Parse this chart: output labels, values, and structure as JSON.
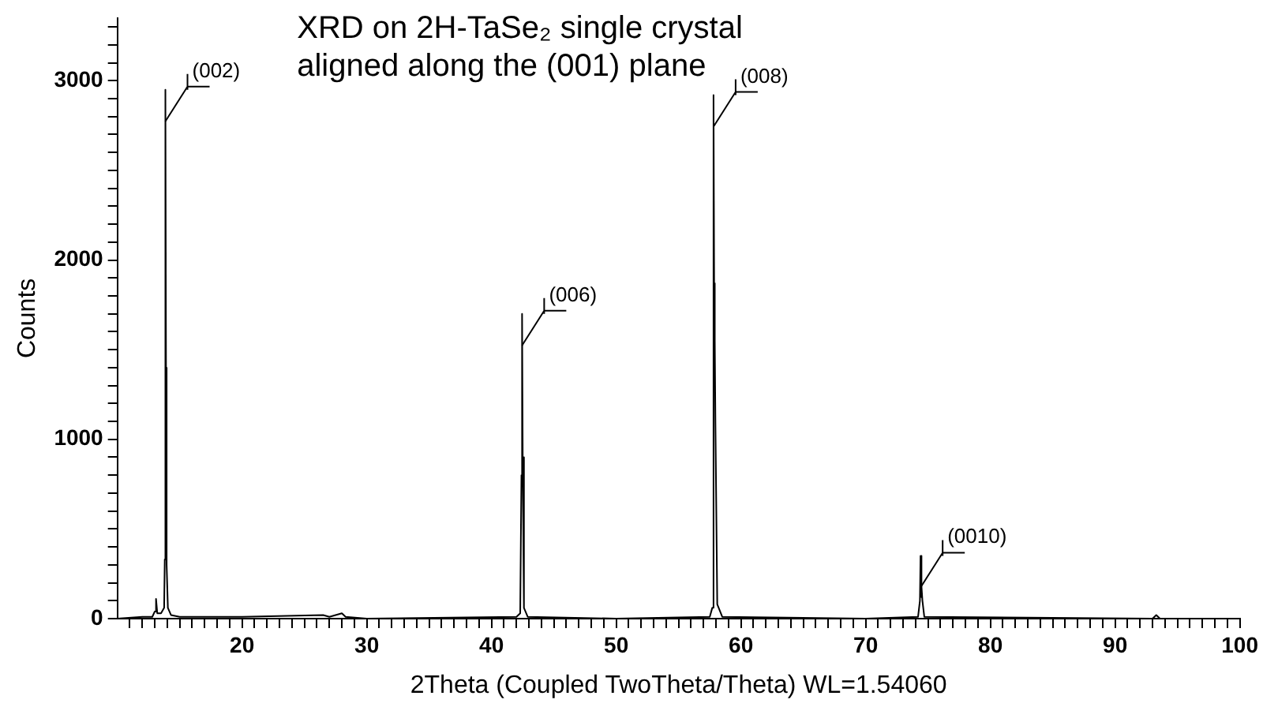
{
  "chart_data": {
    "type": "line",
    "title": "XRD on 2H-TaSe₂ single crystal",
    "subtitle": "aligned along the (001) plane",
    "xlabel": "2Theta (Coupled TwoTheta/Theta) WL=1.54060",
    "ylabel": "Counts",
    "series": [
      {
        "color": "#000000",
        "x": [
          10,
          12,
          12.8,
          13.0,
          13.1,
          13.2,
          13.5,
          13.75,
          13.8,
          13.85,
          13.9,
          13.95,
          14.05,
          14.3,
          15,
          20,
          26.5,
          27,
          28,
          28.3,
          30,
          42,
          42.3,
          42.4,
          42.45,
          42.5,
          42.6,
          42.9,
          50,
          57.5,
          57.7,
          57.8,
          57.85,
          57.9,
          57.95,
          58.1,
          58.5,
          70,
          74.2,
          74.35,
          74.4,
          74.45,
          74.5,
          74.55,
          74.7,
          93,
          93.3,
          93.6,
          100
        ],
        "values": [
          0,
          10,
          10,
          40,
          110,
          30,
          30,
          60,
          330,
          2950,
          1400,
          300,
          60,
          20,
          10,
          10,
          20,
          10,
          30,
          10,
          0,
          10,
          30,
          800,
          1700,
          900,
          60,
          10,
          0,
          10,
          60,
          2920,
          1870,
          1550,
          1100,
          80,
          10,
          0,
          10,
          100,
          350,
          120,
          180,
          100,
          10,
          0,
          20,
          0,
          0
        ]
      }
    ],
    "annotations": [
      {
        "text": "(002)",
        "x": 13.85,
        "y": 2950
      },
      {
        "text": "(006)",
        "x": 42.45,
        "y": 1700
      },
      {
        "text": "(008)",
        "x": 57.8,
        "y": 2920
      },
      {
        "text": "(0010)",
        "x": 74.4,
        "y": 350
      }
    ],
    "xlim": [
      10,
      100
    ],
    "xticks": [
      {
        "value": 11,
        "label": null
      },
      {
        "value": 12,
        "label": null
      },
      {
        "value": 13,
        "label": null
      },
      {
        "value": 14,
        "label": null
      },
      {
        "value": 15,
        "label": null
      },
      {
        "value": 16,
        "label": null
      },
      {
        "value": 17,
        "label": null
      },
      {
        "value": 18,
        "label": null
      },
      {
        "value": 19,
        "label": null
      },
      20,
      {
        "value": 21,
        "label": null
      },
      {
        "value": 22,
        "label": null
      },
      {
        "value": 23,
        "label": null
      },
      {
        "value": 24,
        "label": null
      },
      {
        "value": 25,
        "label": null
      },
      {
        "value": 26,
        "label": null
      },
      {
        "value": 27,
        "label": null
      },
      {
        "value": 28,
        "label": null
      },
      {
        "value": 29,
        "label": null
      },
      30,
      {
        "value": 31,
        "label": null
      },
      {
        "value": 32,
        "label": null
      },
      {
        "value": 33,
        "label": null
      },
      {
        "value": 34,
        "label": null
      },
      {
        "value": 35,
        "label": null
      },
      {
        "value": 36,
        "label": null
      },
      {
        "value": 37,
        "label": null
      },
      {
        "value": 38,
        "label": null
      },
      {
        "value": 39,
        "label": null
      },
      40,
      {
        "value": 41,
        "label": null
      },
      {
        "value": 42,
        "label": null
      },
      {
        "value": 43,
        "label": null
      },
      {
        "value": 44,
        "label": null
      },
      {
        "value": 45,
        "label": null
      },
      {
        "value": 46,
        "label": null
      },
      {
        "value": 47,
        "label": null
      },
      {
        "value": 48,
        "label": null
      },
      {
        "value": 49,
        "label": null
      },
      50,
      {
        "value": 51,
        "label": null
      },
      {
        "value": 52,
        "label": null
      },
      {
        "value": 53,
        "label": null
      },
      {
        "value": 54,
        "label": null
      },
      {
        "value": 55,
        "label": null
      },
      {
        "value": 56,
        "label": null
      },
      {
        "value": 57,
        "label": null
      },
      {
        "value": 58,
        "label": null
      },
      {
        "value": 59,
        "label": null
      },
      60,
      {
        "value": 61,
        "label": null
      },
      {
        "value": 62,
        "label": null
      },
      {
        "value": 63,
        "label": null
      },
      {
        "value": 64,
        "label": null
      },
      {
        "value": 65,
        "label": null
      },
      {
        "value": 66,
        "label": null
      },
      {
        "value": 67,
        "label": null
      },
      {
        "value": 68,
        "label": null
      },
      {
        "value": 69,
        "label": null
      },
      70,
      {
        "value": 71,
        "label": null
      },
      {
        "value": 72,
        "label": null
      },
      {
        "value": 73,
        "label": null
      },
      {
        "value": 74,
        "label": null
      },
      {
        "value": 75,
        "label": null
      },
      {
        "value": 76,
        "label": null
      },
      {
        "value": 77,
        "label": null
      },
      {
        "value": 78,
        "label": null
      },
      {
        "value": 79,
        "label": null
      },
      80,
      {
        "value": 81,
        "label": null
      },
      {
        "value": 82,
        "label": null
      },
      {
        "value": 83,
        "label": null
      },
      {
        "value": 84,
        "label": null
      },
      {
        "value": 85,
        "label": null
      },
      {
        "value": 86,
        "label": null
      },
      {
        "value": 87,
        "label": null
      },
      {
        "value": 88,
        "label": null
      },
      {
        "value": 89,
        "label": null
      },
      90,
      {
        "value": 91,
        "label": null
      },
      {
        "value": 92,
        "label": null
      },
      {
        "value": 93,
        "label": null
      },
      {
        "value": 94,
        "label": null
      },
      {
        "value": 95,
        "label": null
      },
      {
        "value": 96,
        "label": null
      },
      {
        "value": 97,
        "label": null
      },
      {
        "value": 98,
        "label": null
      },
      {
        "value": 99,
        "label": null
      },
      100
    ],
    "ylim": [
      0,
      3350
    ],
    "yticks": [
      0,
      {
        "value": 100,
        "label": null
      },
      {
        "value": 200,
        "label": null
      },
      {
        "value": 300,
        "label": null
      },
      {
        "value": 400,
        "label": null
      },
      {
        "value": 500,
        "label": null
      },
      {
        "value": 600,
        "label": null
      },
      {
        "value": 700,
        "label": null
      },
      {
        "value": 800,
        "label": null
      },
      {
        "value": 900,
        "label": null
      },
      1000,
      {
        "value": 1100,
        "label": null
      },
      {
        "value": 1200,
        "label": null
      },
      {
        "value": 1300,
        "label": null
      },
      {
        "value": 1400,
        "label": null
      },
      {
        "value": 1500,
        "label": null
      },
      {
        "value": 1600,
        "label": null
      },
      {
        "value": 1700,
        "label": null
      },
      {
        "value": 1800,
        "label": null
      },
      {
        "value": 1900,
        "label": null
      },
      2000,
      {
        "value": 2100,
        "label": null
      },
      {
        "value": 2200,
        "label": null
      },
      {
        "value": 2300,
        "label": null
      },
      {
        "value": 2400,
        "label": null
      },
      {
        "value": 2500,
        "label": null
      },
      {
        "value": 2600,
        "label": null
      },
      {
        "value": 2700,
        "label": null
      },
      {
        "value": 2800,
        "label": null
      },
      {
        "value": 2900,
        "label": null
      },
      3000,
      {
        "value": 3100,
        "label": null
      },
      {
        "value": 3200,
        "label": null
      },
      {
        "value": 3300,
        "label": null
      }
    ],
    "grid": false,
    "legend": false,
    "marker": "none",
    "line_style": "solid"
  }
}
